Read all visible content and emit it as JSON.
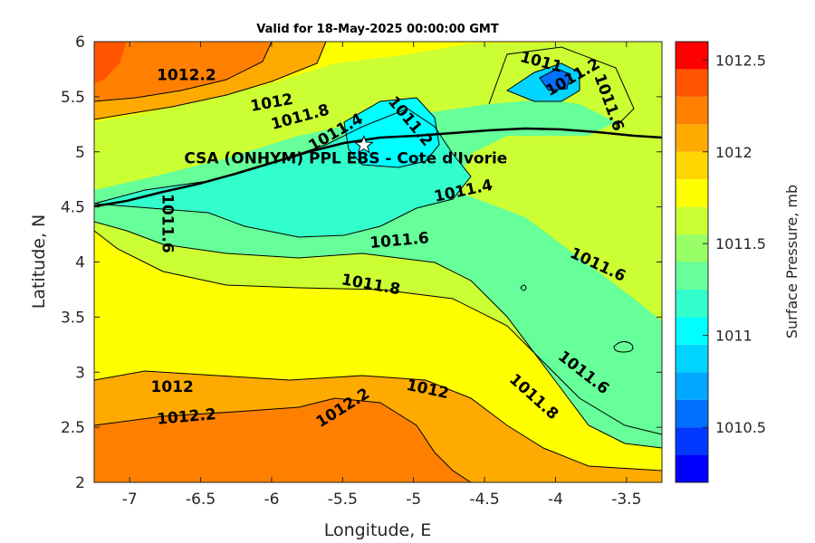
{
  "chart_data": {
    "type": "contour",
    "title": "Valid for 18-May-2025 00:00:00 GMT",
    "xlabel": "Longitude, E",
    "ylabel": "Latitude, N",
    "xlim": [
      -7.25,
      -3.25
    ],
    "ylim": [
      2,
      6
    ],
    "xticks": [
      "-7",
      "-6.5",
      "-6",
      "-5.5",
      "-5",
      "-4.5",
      "-4",
      "-3.5"
    ],
    "yticks": [
      "2",
      "2.5",
      "3",
      "3.5",
      "4",
      "4.5",
      "5",
      "5.5",
      "6"
    ],
    "colorbar": {
      "label": "Surface Pressure, mb",
      "range": [
        1010.2,
        1012.6
      ],
      "ticks": [
        "1010.5",
        "1011",
        "1011.5",
        "1012",
        "1012.5"
      ],
      "levels": [
        1010.2,
        1010.35,
        1010.5,
        1010.65,
        1010.8,
        1010.95,
        1011.1,
        1011.25,
        1011.4,
        1011.55,
        1011.7,
        1011.85,
        1012.0,
        1012.15,
        1012.3,
        1012.45,
        1012.6
      ],
      "colors": [
        "#0000ff",
        "#0038ff",
        "#0070ff",
        "#00a8ff",
        "#00d4ff",
        "#00ffff",
        "#33ffcc",
        "#66ff99",
        "#99ff66",
        "#ccff33",
        "#ffff00",
        "#ffd700",
        "#ffaa00",
        "#ff8000",
        "#ff5500",
        "#ff0000"
      ]
    },
    "site": {
      "label": "CSA (ONHYM) PPL EBS   - Cote d'Ivorie",
      "lon": -5.35,
      "lat": 5.06
    },
    "contour_labels": [
      {
        "text": "1012.2",
        "lon": -6.6,
        "lat": 5.7,
        "angle": 0
      },
      {
        "text": "1012",
        "lon": -6.0,
        "lat": 5.45,
        "angle": -10
      },
      {
        "text": "1011.8",
        "lon": -5.8,
        "lat": 5.32,
        "angle": -15
      },
      {
        "text": "1011.4",
        "lon": -5.55,
        "lat": 5.18,
        "angle": -30
      },
      {
        "text": "1011.2",
        "lon": -5.02,
        "lat": 5.28,
        "angle": 50
      },
      {
        "text": "1011.4",
        "lon": -4.65,
        "lat": 4.65,
        "angle": -12
      },
      {
        "text": "1011.6",
        "lon": -6.73,
        "lat": 4.35,
        "angle": 90
      },
      {
        "text": "1011.6",
        "lon": -5.1,
        "lat": 4.2,
        "angle": -5
      },
      {
        "text": "1011.8",
        "lon": -5.3,
        "lat": 3.8,
        "angle": 10
      },
      {
        "text": "1011.6",
        "lon": -3.7,
        "lat": 3.98,
        "angle": 25
      },
      {
        "text": "1011.6",
        "lon": -3.8,
        "lat": 3.0,
        "angle": 38
      },
      {
        "text": "1011.8",
        "lon": -4.15,
        "lat": 2.78,
        "angle": 42
      },
      {
        "text": "1012",
        "lon": -6.7,
        "lat": 2.87,
        "angle": 0
      },
      {
        "text": "1012.2",
        "lon": -6.6,
        "lat": 2.6,
        "angle": -5
      },
      {
        "text": "1012.2",
        "lon": -5.5,
        "lat": 2.68,
        "angle": -32
      },
      {
        "text": "1012",
        "lon": -4.9,
        "lat": 2.85,
        "angle": 12
      },
      {
        "text": "1011",
        "lon": -4.1,
        "lat": 5.82,
        "angle": 15
      },
      {
        "text": "1011.2",
        "lon": -3.88,
        "lat": 5.68,
        "angle": -30
      },
      {
        "text": "1011.6",
        "lon": -3.62,
        "lat": 5.45,
        "angle": 70
      }
    ]
  }
}
